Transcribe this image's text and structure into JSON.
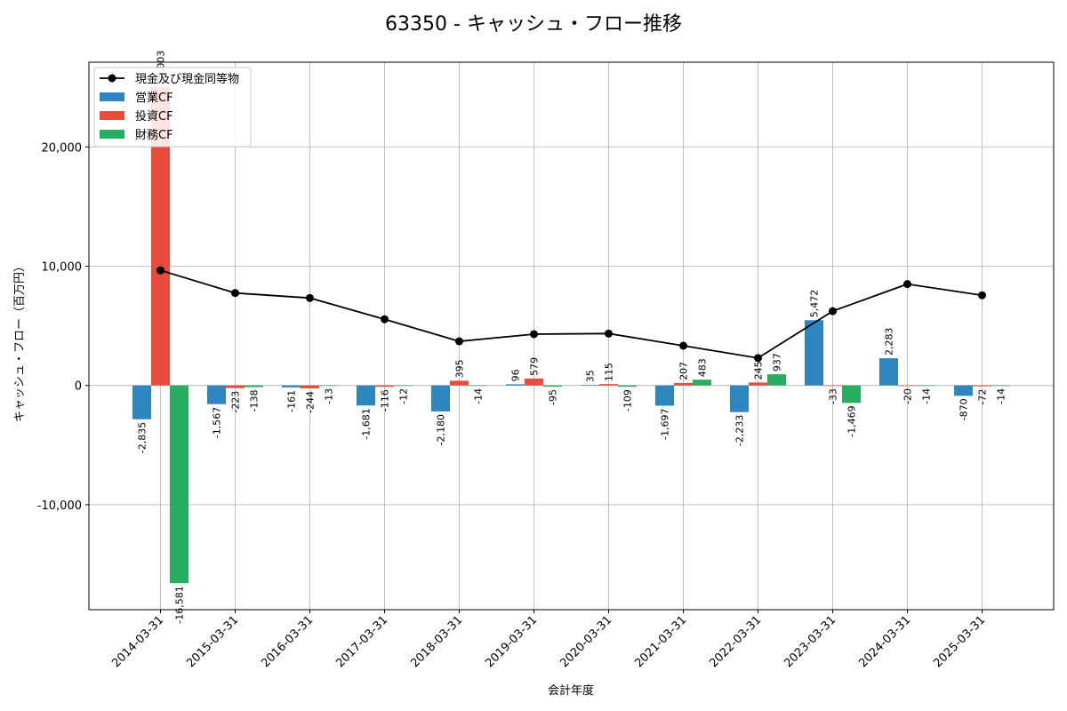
{
  "chart_data": {
    "type": "bar",
    "title": "63350 - キャッシュ・フロー推移",
    "xlabel": "会計年度",
    "ylabel": "キャッシュ・フロー（百万円）",
    "categories": [
      "2014-03-31",
      "2015-03-31",
      "2016-03-31",
      "2017-03-31",
      "2018-03-31",
      "2019-03-31",
      "2020-03-31",
      "2021-03-31",
      "2022-03-31",
      "2023-03-31",
      "2024-03-31",
      "2025-03-31"
    ],
    "series": [
      {
        "name": "営業CF",
        "kind": "bar",
        "color": "#2e86c1",
        "values": [
          -2835,
          -1567,
          -161,
          -1681,
          -2180,
          96,
          35,
          -1697,
          -2233,
          5472,
          2283,
          -870
        ],
        "labels": [
          "-2,835",
          "-1,567",
          "-161",
          "-1,681",
          "-2,180",
          "96",
          "35",
          "-1,697",
          "-2,233",
          "5,472",
          "2,283",
          "-870"
        ]
      },
      {
        "name": "投資CF",
        "kind": "bar",
        "color": "#e74c3c",
        "values": [
          25003,
          -223,
          -244,
          -116,
          395,
          579,
          115,
          207,
          245,
          -33,
          -20,
          -72
        ],
        "labels": [
          "25,003",
          "-223",
          "-244",
          "-116",
          "395",
          "579",
          "115",
          "207",
          "245",
          "-33",
          "-20",
          "-72"
        ]
      },
      {
        "name": "財務CF",
        "kind": "bar",
        "color": "#27ae60",
        "values": [
          -16581,
          -138,
          -13,
          -12,
          -14,
          -95,
          -109,
          483,
          937,
          -1469,
          -14,
          -14
        ],
        "labels": [
          "-16,581",
          "-138",
          "-13",
          "-12",
          "-14",
          "-95",
          "-109",
          "483",
          "937",
          "-1,469",
          "-14",
          "-14"
        ]
      },
      {
        "name": "現金及び現金同等物",
        "kind": "line",
        "color": "#000000",
        "values": [
          9650,
          7750,
          7330,
          5550,
          3700,
          4300,
          4350,
          3330,
          2300,
          6230,
          8500,
          7560
        ]
      }
    ],
    "yticks": [
      -10000,
      0,
      10000,
      20000
    ],
    "ytick_labels": [
      "-10,000",
      "0",
      "10,000",
      "20,000"
    ],
    "ylim": [
      -18800,
      27100
    ],
    "grid": true,
    "legend_position": "top-left"
  }
}
